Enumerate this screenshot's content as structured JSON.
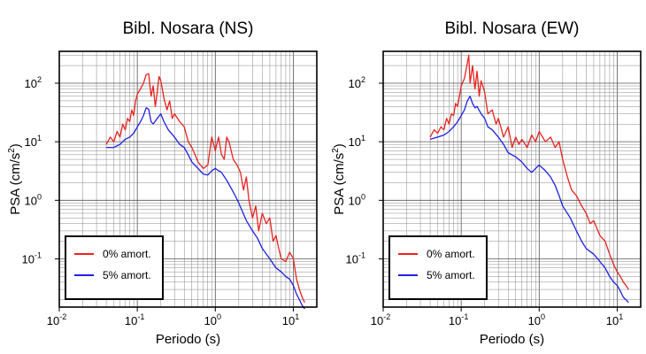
{
  "chart_data": [
    {
      "type": "line",
      "title": "Bibl. Nosara (NS)",
      "xlabel": "Periodo (s)",
      "ylabel": "PSA (cm/s",
      "ylabel_sup": "2",
      "ylabel_end": ")",
      "xscale": "log",
      "yscale": "log",
      "xlim": [
        0.01,
        20
      ],
      "ylim": [
        0.015,
        350
      ],
      "grid": true,
      "legend_position": "bottom-left",
      "series": [
        {
          "name": "0% amort.",
          "color": "#e8231f",
          "x": [
            0.04,
            0.045,
            0.05,
            0.055,
            0.06,
            0.065,
            0.07,
            0.075,
            0.08,
            0.085,
            0.09,
            0.095,
            0.1,
            0.11,
            0.12,
            0.13,
            0.14,
            0.15,
            0.16,
            0.17,
            0.18,
            0.19,
            0.2,
            0.22,
            0.24,
            0.26,
            0.28,
            0.3,
            0.35,
            0.4,
            0.45,
            0.5,
            0.55,
            0.6,
            0.7,
            0.8,
            0.9,
            1.0,
            1.1,
            1.2,
            1.3,
            1.4,
            1.5,
            1.7,
            1.9,
            2.1,
            2.3,
            2.5,
            2.7,
            3.0,
            3.3,
            3.6,
            4.0,
            4.5,
            5.0,
            5.5,
            6.0,
            6.5,
            7.0,
            8.0,
            9.0,
            10.0,
            11.0,
            12.0,
            13.0,
            14.0
          ],
          "values": [
            9,
            12,
            10,
            15,
            12,
            20,
            16,
            25,
            22,
            35,
            28,
            50,
            65,
            80,
            100,
            140,
            145,
            60,
            90,
            40,
            70,
            130,
            110,
            55,
            35,
            50,
            25,
            30,
            22,
            18,
            10,
            8,
            6,
            4.5,
            3.5,
            4,
            12,
            7,
            12,
            6,
            5,
            12,
            10,
            5,
            4,
            3,
            1.5,
            2.5,
            1,
            0.5,
            0.8,
            0.3,
            0.6,
            0.4,
            0.5,
            0.2,
            0.25,
            0.15,
            0.1,
            0.09,
            0.13,
            0.1,
            0.045,
            0.03,
            0.022,
            0.018
          ]
        },
        {
          "name": "5% amort.",
          "color": "#1f1fe8",
          "x": [
            0.04,
            0.05,
            0.06,
            0.07,
            0.08,
            0.09,
            0.1,
            0.11,
            0.12,
            0.13,
            0.14,
            0.15,
            0.16,
            0.18,
            0.2,
            0.22,
            0.25,
            0.3,
            0.35,
            0.4,
            0.45,
            0.5,
            0.6,
            0.7,
            0.8,
            0.9,
            1.0,
            1.1,
            1.2,
            1.4,
            1.6,
            1.8,
            2.0,
            2.5,
            3.0,
            3.5,
            4.0,
            5.0,
            6.0,
            7.0,
            8.0,
            9.0,
            10.0,
            11.0,
            12.0,
            13.0,
            14.0
          ],
          "values": [
            8,
            8,
            9,
            11,
            12,
            14,
            18,
            22,
            28,
            38,
            36,
            22,
            20,
            25,
            30,
            22,
            16,
            12,
            9,
            8,
            6,
            4.5,
            3.5,
            2.8,
            2.7,
            3.2,
            3.5,
            3.2,
            3.0,
            2.2,
            1.6,
            1.2,
            0.9,
            0.45,
            0.3,
            0.22,
            0.15,
            0.1,
            0.07,
            0.06,
            0.05,
            0.045,
            0.035,
            0.025,
            0.02,
            0.016,
            0.014
          ]
        }
      ]
    },
    {
      "type": "line",
      "title": "Bibl. Nosara (EW)",
      "xlabel": "Periodo (s)",
      "ylabel": "PSA (cm/s",
      "ylabel_sup": "2",
      "ylabel_end": ")",
      "xscale": "log",
      "yscale": "log",
      "xlim": [
        0.01,
        20
      ],
      "ylim": [
        0.015,
        350
      ],
      "grid": true,
      "legend_position": "bottom-left",
      "series": [
        {
          "name": "0% amort.",
          "color": "#e8231f",
          "x": [
            0.04,
            0.045,
            0.05,
            0.055,
            0.06,
            0.065,
            0.07,
            0.075,
            0.08,
            0.085,
            0.09,
            0.095,
            0.1,
            0.11,
            0.12,
            0.125,
            0.13,
            0.14,
            0.15,
            0.16,
            0.17,
            0.18,
            0.2,
            0.22,
            0.25,
            0.28,
            0.3,
            0.35,
            0.4,
            0.45,
            0.5,
            0.55,
            0.6,
            0.7,
            0.8,
            0.9,
            1.0,
            1.2,
            1.4,
            1.6,
            1.8,
            2.0,
            2.3,
            2.6,
            3.0,
            3.5,
            4.0,
            4.5,
            5.0,
            6.0,
            7.0,
            8.0,
            9.0,
            10.0,
            11.0,
            12.0,
            13.0,
            14.0
          ],
          "values": [
            12,
            16,
            14,
            18,
            16,
            25,
            20,
            30,
            28,
            45,
            40,
            60,
            90,
            120,
            220,
            300,
            100,
            200,
            80,
            160,
            60,
            110,
            70,
            30,
            35,
            20,
            25,
            12,
            18,
            8,
            12,
            9,
            11,
            8,
            13,
            10,
            15,
            10,
            12,
            8,
            10,
            5,
            2.5,
            1.5,
            1.2,
            0.8,
            0.6,
            0.4,
            0.45,
            0.25,
            0.2,
            0.12,
            0.08,
            0.06,
            0.05,
            0.04,
            0.035,
            0.03
          ]
        },
        {
          "name": "5% amort.",
          "color": "#1f1fe8",
          "x": [
            0.04,
            0.05,
            0.06,
            0.07,
            0.08,
            0.09,
            0.1,
            0.11,
            0.12,
            0.13,
            0.14,
            0.15,
            0.16,
            0.18,
            0.2,
            0.22,
            0.25,
            0.3,
            0.35,
            0.4,
            0.5,
            0.6,
            0.7,
            0.8,
            0.9,
            1.0,
            1.2,
            1.4,
            1.6,
            1.8,
            2.0,
            2.5,
            3.0,
            3.5,
            4.0,
            5.0,
            6.0,
            7.0,
            8.0,
            9.0,
            10.0,
            11.0,
            12.0,
            13.0,
            14.0
          ],
          "values": [
            11,
            12,
            13,
            15,
            18,
            22,
            28,
            35,
            50,
            60,
            45,
            38,
            40,
            30,
            25,
            18,
            16,
            12,
            9,
            6.5,
            5.5,
            4.5,
            3.5,
            3.0,
            3.5,
            4,
            3.2,
            2.5,
            1.8,
            1.2,
            0.8,
            0.5,
            0.3,
            0.2,
            0.15,
            0.12,
            0.09,
            0.07,
            0.05,
            0.04,
            0.035,
            0.028,
            0.022,
            0.02,
            0.018
          ]
        }
      ]
    }
  ]
}
